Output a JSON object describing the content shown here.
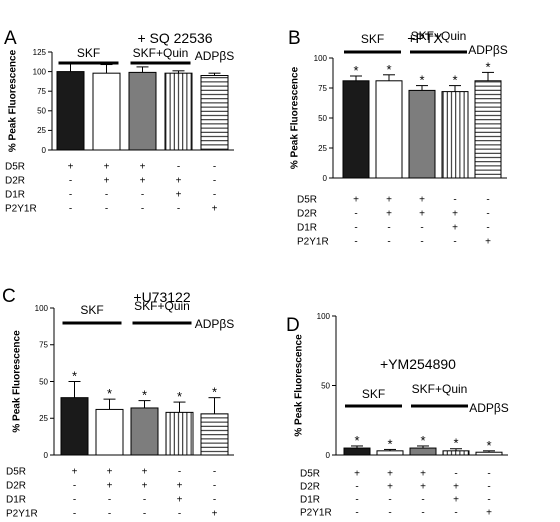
{
  "chart_data": [
    {
      "type": "bar",
      "panel": "A",
      "title": "+ SQ 22536",
      "ylabel": "% Peak Fluorescence",
      "ylim": [
        0,
        125
      ],
      "yticks": [
        0,
        25,
        50,
        75,
        100,
        125
      ],
      "grid": false,
      "values": [
        100,
        98,
        99,
        98,
        95
      ],
      "errors": [
        10,
        11,
        7,
        3,
        3
      ],
      "significant": [
        false,
        false,
        false,
        false,
        false
      ],
      "groups": [
        {
          "label": "SKF",
          "bars": [
            0,
            1
          ]
        },
        {
          "label": "SKF+Quin",
          "bars": [
            2,
            3
          ]
        },
        {
          "label": "ADPβS",
          "bars": [
            4,
            4
          ]
        }
      ],
      "rows": [
        {
          "label": "D5R",
          "marks": [
            "+",
            "+",
            "+",
            "-",
            "-"
          ]
        },
        {
          "label": "D2R",
          "marks": [
            "-",
            "+",
            "+",
            "+",
            "-"
          ]
        },
        {
          "label": "D1R",
          "marks": [
            "-",
            "-",
            "-",
            "+",
            "-"
          ]
        },
        {
          "label": "P2Y1R",
          "marks": [
            "-",
            "-",
            "-",
            "-",
            "+"
          ]
        }
      ]
    },
    {
      "type": "bar",
      "panel": "B",
      "title": "+PTX",
      "ylabel": "% Peak Fluorescence",
      "ylim": [
        0,
        100
      ],
      "yticks": [
        0,
        25,
        50,
        75,
        100
      ],
      "grid": false,
      "values": [
        81,
        81,
        73,
        72,
        81
      ],
      "errors": [
        4,
        5,
        4,
        5,
        7
      ],
      "significant": [
        true,
        true,
        true,
        true,
        true
      ],
      "groups": [
        {
          "label": "SKF",
          "bars": [
            0,
            1
          ]
        },
        {
          "label": "SKF+Quin",
          "bars": [
            2,
            3
          ]
        },
        {
          "label": "ADPβS",
          "bars": [
            4,
            4
          ]
        }
      ],
      "rows": [
        {
          "label": "D5R",
          "marks": [
            "+",
            "+",
            "+",
            "-",
            "-"
          ]
        },
        {
          "label": "D2R",
          "marks": [
            "-",
            "+",
            "+",
            "+",
            "-"
          ]
        },
        {
          "label": "D1R",
          "marks": [
            "-",
            "-",
            "-",
            "+",
            "-"
          ]
        },
        {
          "label": "P2Y1R",
          "marks": [
            "-",
            "-",
            "-",
            "-",
            "+"
          ]
        }
      ]
    },
    {
      "type": "bar",
      "panel": "C",
      "title": "+U73122",
      "ylabel": "% Peak Fluorescence",
      "ylim": [
        0,
        100
      ],
      "yticks": [
        0,
        25,
        50,
        75,
        100
      ],
      "grid": false,
      "values": [
        39,
        31,
        32,
        29,
        28
      ],
      "errors": [
        11,
        7,
        5,
        7,
        11
      ],
      "significant": [
        true,
        true,
        true,
        true,
        true
      ],
      "groups": [
        {
          "label": "SKF",
          "bars": [
            0,
            1
          ]
        },
        {
          "label": "SKF+Quin",
          "bars": [
            2,
            3
          ]
        },
        {
          "label": "ADPβS",
          "bars": [
            4,
            4
          ]
        }
      ],
      "rows": [
        {
          "label": "D5R",
          "marks": [
            "+",
            "+",
            "+",
            "-",
            "-"
          ]
        },
        {
          "label": "D2R",
          "marks": [
            "-",
            "+",
            "+",
            "+",
            "-"
          ]
        },
        {
          "label": "D1R",
          "marks": [
            "-",
            "-",
            "-",
            "+",
            "-"
          ]
        },
        {
          "label": "P2Y1R",
          "marks": [
            "-",
            "-",
            "-",
            "-",
            "+"
          ]
        }
      ]
    },
    {
      "type": "bar",
      "panel": "D",
      "title": "+YM254890",
      "ylabel": "% Peak Fluorescence",
      "ylim": [
        0,
        100
      ],
      "yticks": [
        0,
        50,
        100
      ],
      "grid": false,
      "values": [
        5,
        3,
        5,
        3,
        2
      ],
      "errors": [
        1.5,
        1,
        1.5,
        1.5,
        1
      ],
      "significant": [
        true,
        true,
        true,
        true,
        true
      ],
      "groups": [
        {
          "label": "SKF",
          "bars": [
            0,
            1
          ]
        },
        {
          "label": "SKF+Quin",
          "bars": [
            2,
            3
          ]
        },
        {
          "label": "ADPβS",
          "bars": [
            4,
            4
          ]
        }
      ],
      "rows": [
        {
          "label": "D5R",
          "marks": [
            "+",
            "+",
            "+",
            "-",
            "-"
          ]
        },
        {
          "label": "D2R",
          "marks": [
            "-",
            "+",
            "+",
            "+",
            "-"
          ]
        },
        {
          "label": "D1R",
          "marks": [
            "-",
            "-",
            "-",
            "+",
            "-"
          ]
        },
        {
          "label": "P2Y1R",
          "marks": [
            "-",
            "-",
            "-",
            "-",
            "+"
          ]
        }
      ]
    }
  ]
}
